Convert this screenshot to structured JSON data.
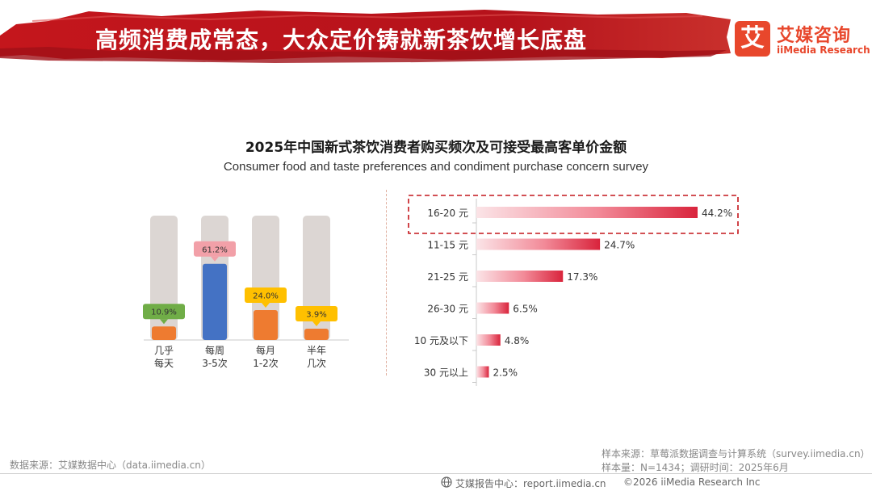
{
  "header": {
    "title": "高频消费成常态，大众定价铸就新茶饮增长底盘",
    "logo_mark": "艾",
    "logo_cn": "艾媒咨询",
    "logo_en": "iiMedia Research"
  },
  "chart_title": "2025年中国新式茶饮消费者购买频次及可接受最高客单价金额",
  "chart_subtitle": "Consumer food and taste preferences and condiment purchase concern survey",
  "chart_data": [
    {
      "type": "bar",
      "orientation": "vertical",
      "title": "购买频次",
      "categories": [
        [
          "几乎",
          "每天"
        ],
        [
          "每周",
          "3-5次"
        ],
        [
          "每月",
          "1-2次"
        ],
        [
          "半年",
          "几次"
        ]
      ],
      "values": [
        10.9,
        61.2,
        24.0,
        3.9
      ],
      "labels": [
        "10.9%",
        "61.2%",
        "24.0%",
        "3.9%"
      ],
      "bar_colors": [
        "#ee7b30",
        "#4472c4",
        "#ee7b30",
        "#ee7b30"
      ],
      "label_colors": [
        "#70ad47",
        "#f2a0a8",
        "#ffc000",
        "#ffc000"
      ],
      "track_color": "#dcd6d3",
      "ylim": [
        0,
        100
      ]
    },
    {
      "type": "bar",
      "orientation": "horizontal",
      "title": "可接受最高客单价金额",
      "categories": [
        "16-20 元",
        "11-15 元",
        "21-25 元",
        "26-30 元",
        "10 元及以下",
        "30 元以上"
      ],
      "values": [
        44.2,
        24.7,
        17.3,
        6.5,
        4.8,
        2.5
      ],
      "labels": [
        "44.2%",
        "24.7%",
        "17.3%",
        "6.5%",
        "4.8%",
        "2.5%"
      ],
      "highlight": "16-20 元",
      "bar_color": "#d9243c",
      "xlim": [
        0,
        44.2
      ]
    }
  ],
  "footer": {
    "source": "数据来源：艾媒数据中心（data.iimedia.cn）",
    "sample_source": "样本来源：草莓派数据调查与计算系统（survey.iimedia.cn）",
    "sample_size": "样本量：N=1434；调研时间：2025年6月",
    "report_center": "艾媒报告中心：report.iimedia.cn",
    "copyright": "©2026  iiMedia Research  Inc"
  }
}
